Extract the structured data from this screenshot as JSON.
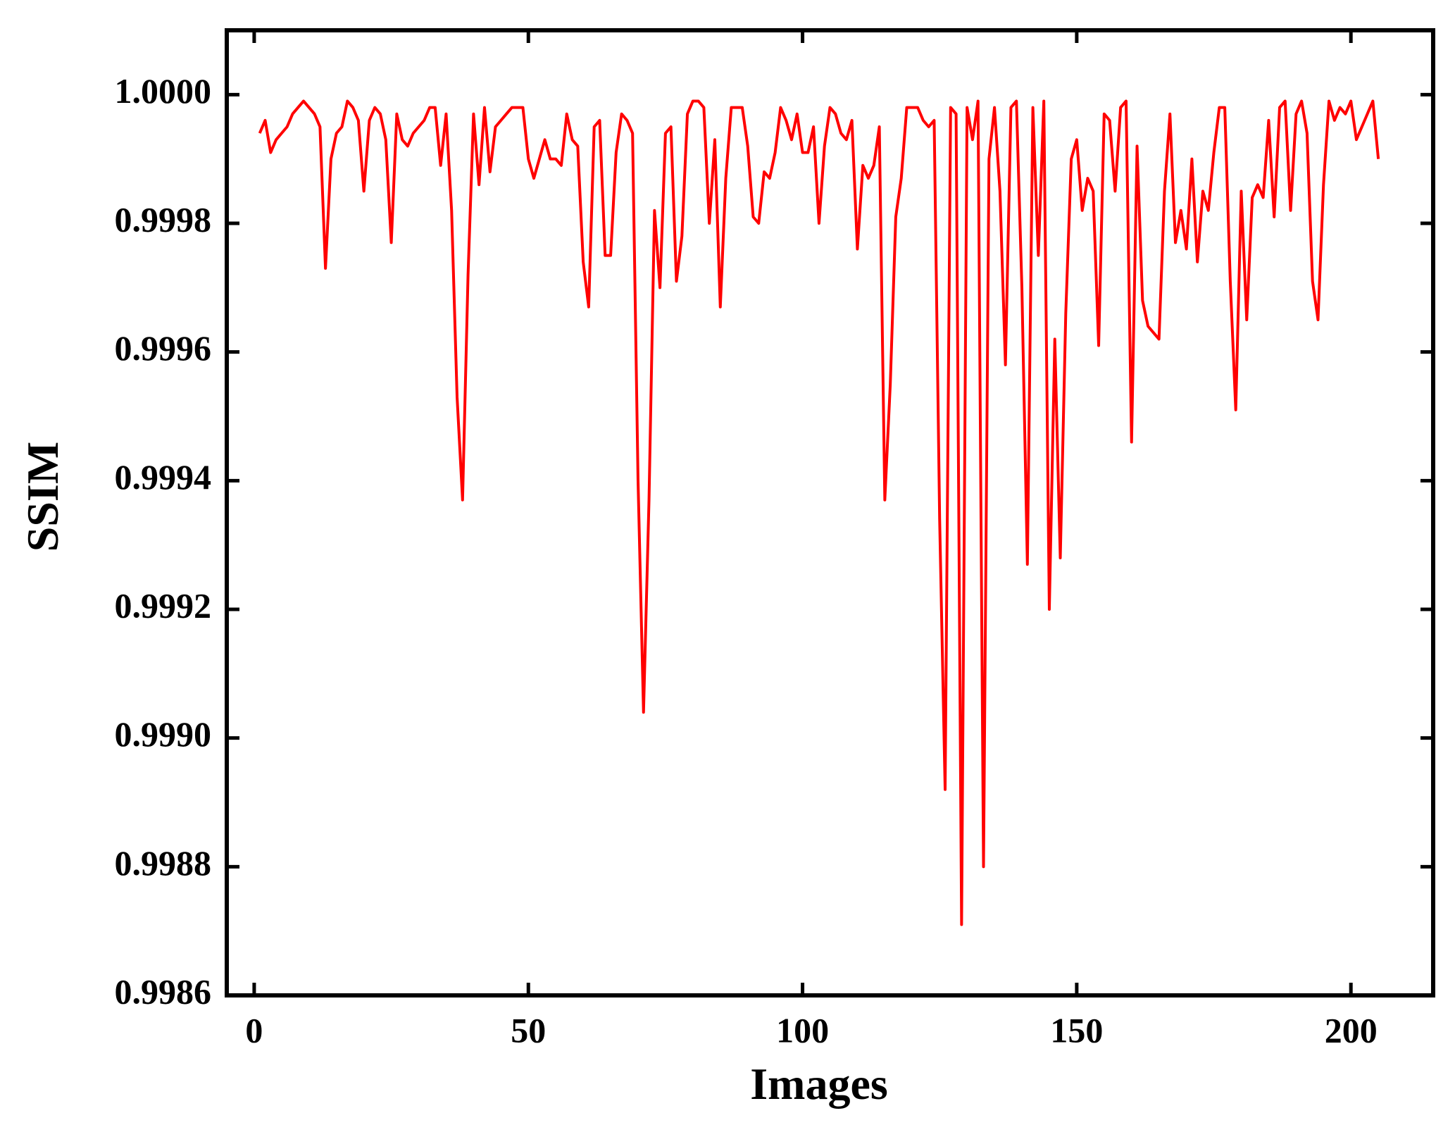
{
  "chart_data": {
    "type": "line",
    "x_label": "Images",
    "y_label": "SSIM",
    "color": "#ff0000",
    "xlim": [
      -5,
      215
    ],
    "xticks": [
      0,
      50,
      100,
      150,
      200
    ],
    "ylim": [
      0.9986,
      1.0001
    ],
    "yticks": [
      {
        "value": 0.9986,
        "label": "0.9986"
      },
      {
        "value": 0.9988,
        "label": "0.9988"
      },
      {
        "value": 0.999,
        "label": "0.9990"
      },
      {
        "value": 0.9992,
        "label": "0.9992"
      },
      {
        "value": 0.9994,
        "label": "0.9994"
      },
      {
        "value": 0.9996,
        "label": "0.9996"
      },
      {
        "value": 0.9998,
        "label": "0.9998"
      },
      {
        "value": 1.0,
        "label": "1.0000"
      }
    ],
    "x": [
      1,
      2,
      3,
      4,
      5,
      6,
      7,
      8,
      9,
      10,
      11,
      12,
      13,
      14,
      15,
      16,
      17,
      18,
      19,
      20,
      21,
      22,
      23,
      24,
      25,
      26,
      27,
      28,
      29,
      30,
      31,
      32,
      33,
      34,
      35,
      36,
      37,
      38,
      39,
      40,
      41,
      42,
      43,
      44,
      45,
      46,
      47,
      48,
      49,
      50,
      51,
      52,
      53,
      54,
      55,
      56,
      57,
      58,
      59,
      60,
      61,
      62,
      63,
      64,
      65,
      66,
      67,
      68,
      69,
      70,
      71,
      72,
      73,
      74,
      75,
      76,
      77,
      78,
      79,
      80,
      81,
      82,
      83,
      84,
      85,
      86,
      87,
      88,
      89,
      90,
      91,
      92,
      93,
      94,
      95,
      96,
      97,
      98,
      99,
      100,
      101,
      102,
      103,
      104,
      105,
      106,
      107,
      108,
      109,
      110,
      111,
      112,
      113,
      114,
      115,
      116,
      117,
      118,
      119,
      120,
      121,
      122,
      123,
      124,
      125,
      126,
      127,
      128,
      129,
      130,
      131,
      132,
      133,
      134,
      135,
      136,
      137,
      138,
      139,
      140,
      141,
      142,
      143,
      144,
      145,
      146,
      147,
      148,
      149,
      150,
      151,
      152,
      153,
      154,
      155,
      156,
      157,
      158,
      159,
      160,
      161,
      162,
      163,
      164,
      165,
      166,
      167,
      168,
      169,
      170,
      171,
      172,
      173,
      174,
      175,
      176,
      177,
      178,
      179,
      180,
      181,
      182,
      183,
      184,
      185,
      186,
      187,
      188,
      189,
      190,
      191,
      192,
      193,
      194,
      195,
      196,
      197,
      198,
      199,
      200,
      201,
      202,
      203,
      204,
      205
    ],
    "values": [
      0.99994,
      0.99996,
      0.99991,
      0.99993,
      0.99994,
      0.99995,
      0.99997,
      0.99998,
      0.99999,
      0.99998,
      0.99997,
      0.99995,
      0.99973,
      0.9999,
      0.99994,
      0.99995,
      0.99999,
      0.99998,
      0.99996,
      0.99985,
      0.99996,
      0.99998,
      0.99997,
      0.99993,
      0.99977,
      0.99997,
      0.99993,
      0.99992,
      0.99994,
      0.99995,
      0.99996,
      0.99998,
      0.99998,
      0.99989,
      0.99997,
      0.99982,
      0.99953,
      0.99937,
      0.99972,
      0.99997,
      0.99986,
      0.99998,
      0.99988,
      0.99995,
      0.99996,
      0.99997,
      0.99998,
      0.99998,
      0.99998,
      0.9999,
      0.99987,
      0.9999,
      0.99993,
      0.9999,
      0.9999,
      0.99989,
      0.99997,
      0.99993,
      0.99992,
      0.99974,
      0.99967,
      0.99995,
      0.99996,
      0.99975,
      0.99975,
      0.99991,
      0.99997,
      0.99996,
      0.99994,
      0.9994,
      0.99904,
      0.99937,
      0.99982,
      0.9997,
      0.99994,
      0.99995,
      0.99971,
      0.99978,
      0.99997,
      0.99999,
      0.99999,
      0.99998,
      0.9998,
      0.99993,
      0.99967,
      0.99987,
      0.99998,
      0.99998,
      0.99998,
      0.99992,
      0.99981,
      0.9998,
      0.99988,
      0.99987,
      0.99991,
      0.99998,
      0.99996,
      0.99993,
      0.99997,
      0.99991,
      0.99991,
      0.99995,
      0.9998,
      0.99992,
      0.99998,
      0.99997,
      0.99994,
      0.99993,
      0.99996,
      0.99976,
      0.99989,
      0.99987,
      0.99989,
      0.99995,
      0.99937,
      0.99955,
      0.99981,
      0.99987,
      0.99998,
      0.99998,
      0.99998,
      0.99996,
      0.99995,
      0.99996,
      0.99934,
      0.99892,
      0.99998,
      0.99997,
      0.99871,
      0.99998,
      0.99993,
      0.99999,
      0.9988,
      0.9999,
      0.99998,
      0.99985,
      0.99958,
      0.99998,
      0.99999,
      0.9997,
      0.99927,
      0.99998,
      0.99975,
      0.99999,
      0.9992,
      0.99962,
      0.99928,
      0.99966,
      0.9999,
      0.99993,
      0.99982,
      0.99987,
      0.99985,
      0.99961,
      0.99997,
      0.99996,
      0.99985,
      0.99998,
      0.99999,
      0.99946,
      0.99992,
      0.99968,
      0.99964,
      0.99963,
      0.99962,
      0.99985,
      0.99997,
      0.99977,
      0.99982,
      0.99976,
      0.9999,
      0.99974,
      0.99985,
      0.99982,
      0.99991,
      0.99998,
      0.99998,
      0.99971,
      0.99951,
      0.99985,
      0.99965,
      0.99984,
      0.99986,
      0.99984,
      0.99996,
      0.99981,
      0.99998,
      0.99999,
      0.99982,
      0.99997,
      0.99999,
      0.99994,
      0.99971,
      0.99965,
      0.99986,
      0.99999,
      0.99996,
      0.99998,
      0.99997,
      0.99999,
      0.99993,
      0.99995,
      0.99997,
      0.99999,
      0.9999
    ]
  }
}
